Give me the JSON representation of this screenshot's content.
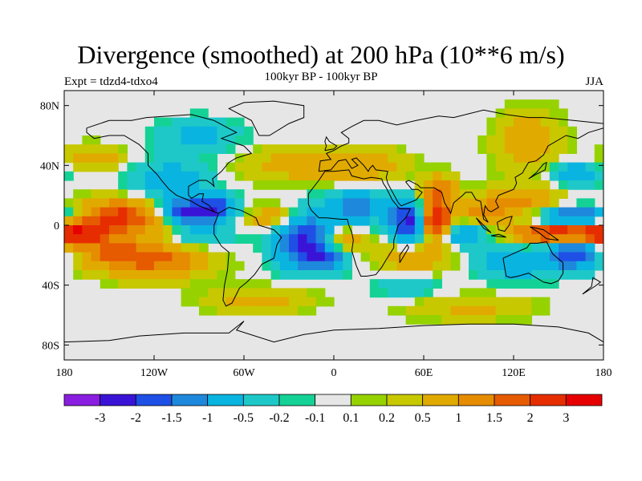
{
  "chart_data": {
    "type": "heatmap",
    "title": "Divergence (smoothed) at 200 hPa (10**6 m/s)",
    "subtitle": "100kyr BP - 100kyr BP",
    "left_label": "Expt = tdzd4-tdxo4",
    "right_label": "JJA",
    "x_ticks": [
      {
        "value": -180,
        "label": "180"
      },
      {
        "value": -120,
        "label": "120W"
      },
      {
        "value": -60,
        "label": "60W"
      },
      {
        "value": 0,
        "label": "0"
      },
      {
        "value": 60,
        "label": "60E"
      },
      {
        "value": 120,
        "label": "120E"
      },
      {
        "value": 180,
        "label": "180"
      }
    ],
    "y_ticks": [
      {
        "value": 80,
        "label": "80N"
      },
      {
        "value": 40,
        "label": "40N"
      },
      {
        "value": 0,
        "label": "0"
      },
      {
        "value": -40,
        "label": "40S"
      },
      {
        "value": -80,
        "label": "80S"
      }
    ],
    "xlim": [
      -180,
      180
    ],
    "ylim": [
      -90,
      90
    ],
    "colorbar": {
      "labels": [
        "-3",
        "-2",
        "-1.5",
        "-1",
        "-0.5",
        "-0.2",
        "-0.1",
        "0.1",
        "0.2",
        "0.5",
        "1",
        "1.5",
        "2",
        "3"
      ],
      "colors": [
        "#8a1ee0",
        "#3a14d6",
        "#1e50e6",
        "#1e88dc",
        "#0ab4e0",
        "#1ec8c8",
        "#14d296",
        "#e6e6e6",
        "#96d200",
        "#c8c800",
        "#e1aa00",
        "#e68c00",
        "#e65a00",
        "#e62d00",
        "#e60000"
      ],
      "levels": [
        -3,
        -2,
        -1.5,
        -1,
        -0.5,
        -0.2,
        -0.1,
        0.1,
        0.2,
        0.5,
        1,
        1.5,
        2,
        3
      ]
    },
    "features": [
      {
        "lon": -130,
        "lat": 5,
        "sx": 25,
        "sy": 8,
        "amp": 1.8
      },
      {
        "lon": -150,
        "lat": 8,
        "sx": 15,
        "sy": 7,
        "amp": 0.8
      },
      {
        "lon": -100,
        "lat": 8,
        "sx": 15,
        "sy": 6,
        "amp": -2.6
      },
      {
        "lon": -80,
        "lat": 12,
        "sx": 10,
        "sy": 6,
        "amp": -1.6
      },
      {
        "lon": -170,
        "lat": -5,
        "sx": 12,
        "sy": 6,
        "amp": 1.9
      },
      {
        "lon": -120,
        "lat": -22,
        "sx": 25,
        "sy": 9,
        "amp": 1.7
      },
      {
        "lon": -150,
        "lat": -18,
        "sx": 15,
        "sy": 7,
        "amp": 0.9
      },
      {
        "lon": -95,
        "lat": -8,
        "sx": 18,
        "sy": 6,
        "amp": -0.9
      },
      {
        "lon": -110,
        "lat": 30,
        "sx": 20,
        "sy": 10,
        "amp": -0.8
      },
      {
        "lon": -160,
        "lat": 45,
        "sx": 15,
        "sy": 6,
        "amp": 0.8
      },
      {
        "lon": -20,
        "lat": -10,
        "sx": 14,
        "sy": 12,
        "amp": -2.2
      },
      {
        "lon": -5,
        "lat": -22,
        "sx": 10,
        "sy": 6,
        "amp": -1.2
      },
      {
        "lon": 5,
        "lat": -10,
        "sx": 10,
        "sy": 6,
        "amp": 1.2
      },
      {
        "lon": -40,
        "lat": 5,
        "sx": 12,
        "sy": 6,
        "amp": 1.0
      },
      {
        "lon": 15,
        "lat": 12,
        "sx": 15,
        "sy": 8,
        "amp": -1.2
      },
      {
        "lon": 50,
        "lat": 2,
        "sx": 8,
        "sy": 10,
        "amp": -2.3
      },
      {
        "lon": 68,
        "lat": 2,
        "sx": 8,
        "sy": 8,
        "amp": 2.8
      },
      {
        "lon": 70,
        "lat": 22,
        "sx": 8,
        "sy": 8,
        "amp": 1.5
      },
      {
        "lon": 55,
        "lat": -22,
        "sx": 18,
        "sy": 8,
        "amp": 0.9
      },
      {
        "lon": 85,
        "lat": -5,
        "sx": 15,
        "sy": 6,
        "amp": -1.2
      },
      {
        "lon": 100,
        "lat": 8,
        "sx": 10,
        "sy": 6,
        "amp": 1.2
      },
      {
        "lon": 125,
        "lat": 15,
        "sx": 18,
        "sy": 8,
        "amp": 1.1
      },
      {
        "lon": 160,
        "lat": 5,
        "sx": 20,
        "sy": 5,
        "amp": -2.0
      },
      {
        "lon": 155,
        "lat": -5,
        "sx": 25,
        "sy": 5,
        "amp": 3.0
      },
      {
        "lon": 160,
        "lat": -18,
        "sx": 12,
        "sy": 8,
        "amp": -1.8
      },
      {
        "lon": 120,
        "lat": -25,
        "sx": 20,
        "sy": 8,
        "amp": -0.9
      },
      {
        "lon": 130,
        "lat": 55,
        "sx": 15,
        "sy": 15,
        "amp": 0.9
      },
      {
        "lon": 160,
        "lat": 35,
        "sx": 15,
        "sy": 6,
        "amp": -0.8
      },
      {
        "lon": -30,
        "lat": 40,
        "sx": 25,
        "sy": 8,
        "amp": 0.7
      },
      {
        "lon": 20,
        "lat": 40,
        "sx": 20,
        "sy": 8,
        "amp": 0.8
      },
      {
        "lon": -90,
        "lat": 60,
        "sx": 20,
        "sy": 8,
        "amp": -0.6
      },
      {
        "lon": -50,
        "lat": -50,
        "sx": 25,
        "sy": 6,
        "amp": 0.7
      },
      {
        "lon": 90,
        "lat": -55,
        "sx": 30,
        "sy": 6,
        "amp": 0.6
      },
      {
        "lon": 50,
        "lat": -40,
        "sx": 15,
        "sy": 6,
        "amp": -0.6
      }
    ]
  },
  "map": {
    "background": "#e6e6e6",
    "coastline_color": "#000000",
    "coastlines": [
      [
        [
          -165,
          65
        ],
        [
          -150,
          70
        ],
        [
          -135,
          70
        ],
        [
          -125,
          72
        ],
        [
          -95,
          74
        ],
        [
          -80,
          70
        ],
        [
          -65,
          62
        ],
        [
          -75,
          58
        ],
        [
          -60,
          53
        ],
        [
          -55,
          48
        ],
        [
          -65,
          45
        ],
        [
          -70,
          42
        ],
        [
          -75,
          36
        ],
        [
          -81,
          31
        ],
        [
          -80,
          26
        ],
        [
          -82,
          28
        ],
        [
          -85,
          30
        ],
        [
          -90,
          30
        ],
        [
          -97,
          26
        ],
        [
          -97,
          20
        ],
        [
          -95,
          18
        ],
        [
          -90,
          21
        ],
        [
          -87,
          21
        ],
        [
          -88,
          16
        ],
        [
          -83,
          13
        ],
        [
          -80,
          9
        ],
        [
          -77,
          8
        ],
        [
          -80,
          9
        ],
        [
          -85,
          11
        ],
        [
          -90,
          13
        ],
        [
          -95,
          16
        ],
        [
          -105,
          20
        ],
        [
          -110,
          24
        ],
        [
          -115,
          30
        ],
        [
          -118,
          34
        ],
        [
          -124,
          40
        ],
        [
          -124,
          48
        ],
        [
          -130,
          54
        ],
        [
          -140,
          60
        ],
        [
          -150,
          60
        ],
        [
          -160,
          58
        ],
        [
          -165,
          62
        ],
        [
          -165,
          65
        ]
      ],
      [
        [
          -77,
          8
        ],
        [
          -70,
          12
        ],
        [
          -62,
          10
        ],
        [
          -52,
          5
        ],
        [
          -50,
          0
        ],
        [
          -40,
          -3
        ],
        [
          -35,
          -8
        ],
        [
          -38,
          -13
        ],
        [
          -40,
          -22
        ],
        [
          -48,
          -26
        ],
        [
          -53,
          -33
        ],
        [
          -58,
          -38
        ],
        [
          -63,
          -42
        ],
        [
          -65,
          -46
        ],
        [
          -68,
          -52
        ],
        [
          -72,
          -54
        ],
        [
          -74,
          -50
        ],
        [
          -73,
          -40
        ],
        [
          -71,
          -30
        ],
        [
          -70,
          -18
        ],
        [
          -75,
          -14
        ],
        [
          -80,
          -6
        ],
        [
          -80,
          0
        ],
        [
          -78,
          5
        ],
        [
          -77,
          8
        ]
      ],
      [
        [
          -17,
          21
        ],
        [
          -17,
          14
        ],
        [
          -15,
          10
        ],
        [
          -10,
          5
        ],
        [
          -5,
          5
        ],
        [
          5,
          4
        ],
        [
          9,
          4
        ],
        [
          10,
          0
        ],
        [
          12,
          -5
        ],
        [
          13,
          -10
        ],
        [
          12,
          -17
        ],
        [
          15,
          -27
        ],
        [
          18,
          -34
        ],
        [
          22,
          -34
        ],
        [
          28,
          -33
        ],
        [
          32,
          -28
        ],
        [
          35,
          -23
        ],
        [
          40,
          -15
        ],
        [
          40,
          -10
        ],
        [
          43,
          0
        ],
        [
          48,
          5
        ],
        [
          51,
          11
        ],
        [
          44,
          11
        ],
        [
          43,
          12
        ],
        [
          39,
          17
        ],
        [
          35,
          25
        ],
        [
          33,
          28
        ],
        [
          32,
          31
        ],
        [
          25,
          32
        ],
        [
          20,
          31
        ],
        [
          12,
          33
        ],
        [
          10,
          37
        ],
        [
          0,
          36
        ],
        [
          -6,
          36
        ],
        [
          -10,
          30
        ],
        [
          -17,
          21
        ]
      ],
      [
        [
          -10,
          36
        ],
        [
          -9,
          43
        ],
        [
          -2,
          44
        ],
        [
          -5,
          48
        ],
        [
          0,
          50
        ],
        [
          5,
          53
        ],
        [
          10,
          55
        ],
        [
          10,
          58
        ],
        [
          5,
          62
        ],
        [
          12,
          66
        ],
        [
          20,
          70
        ],
        [
          30,
          70
        ],
        [
          42,
          67
        ],
        [
          55,
          70
        ],
        [
          70,
          73
        ],
        [
          80,
          72
        ],
        [
          100,
          77
        ],
        [
          115,
          74
        ],
        [
          130,
          72
        ],
        [
          140,
          72
        ],
        [
          160,
          70
        ],
        [
          180,
          68
        ],
        [
          180,
          65
        ],
        [
          170,
          62
        ],
        [
          163,
          58
        ],
        [
          155,
          60
        ],
        [
          143,
          53
        ],
        [
          140,
          47
        ],
        [
          135,
          43
        ],
        [
          130,
          42
        ],
        [
          127,
          37
        ],
        [
          126,
          35
        ],
        [
          121,
          32
        ],
        [
          122,
          28
        ],
        [
          120,
          24
        ],
        [
          115,
          22
        ],
        [
          110,
          20
        ],
        [
          108,
          16
        ],
        [
          110,
          12
        ],
        [
          105,
          9
        ],
        [
          103,
          10
        ],
        [
          101,
          13
        ],
        [
          100,
          7
        ],
        [
          103,
          2
        ],
        [
          100,
          4
        ],
        [
          98,
          16
        ],
        [
          95,
          17
        ],
        [
          92,
          22
        ],
        [
          88,
          22
        ],
        [
          86,
          20
        ],
        [
          80,
          15
        ],
        [
          78,
          8
        ],
        [
          74,
          15
        ],
        [
          72,
          22
        ],
        [
          67,
          25
        ],
        [
          58,
          25
        ],
        [
          56,
          27
        ],
        [
          50,
          30
        ],
        [
          48,
          29
        ],
        [
          52,
          24
        ],
        [
          56,
          24
        ],
        [
          59,
          22
        ],
        [
          55,
          17
        ],
        [
          45,
          13
        ],
        [
          43,
          15
        ],
        [
          36,
          28
        ],
        [
          35,
          32
        ],
        [
          36,
          36
        ],
        [
          28,
          37
        ],
        [
          26,
          40
        ],
        [
          24,
          38
        ],
        [
          23,
          36
        ],
        [
          20,
          40
        ],
        [
          15,
          45
        ],
        [
          12,
          44
        ],
        [
          16,
          40
        ],
        [
          12,
          38
        ],
        [
          8,
          44
        ],
        [
          3,
          43
        ],
        [
          -2,
          37
        ],
        [
          -10,
          36
        ]
      ],
      [
        [
          113,
          -22
        ],
        [
          115,
          -34
        ],
        [
          118,
          -35
        ],
        [
          123,
          -34
        ],
        [
          130,
          -32
        ],
        [
          135,
          -35
        ],
        [
          140,
          -38
        ],
        [
          145,
          -39
        ],
        [
          150,
          -37
        ],
        [
          153,
          -32
        ],
        [
          153,
          -25
        ],
        [
          146,
          -19
        ],
        [
          142,
          -11
        ],
        [
          136,
          -12
        ],
        [
          131,
          -12
        ],
        [
          129,
          -15
        ],
        [
          122,
          -18
        ],
        [
          113,
          -22
        ]
      ],
      [
        [
          -50,
          60
        ],
        [
          -43,
          60
        ],
        [
          -30,
          68
        ],
        [
          -20,
          72
        ],
        [
          -20,
          80
        ],
        [
          -40,
          83
        ],
        [
          -60,
          82
        ],
        [
          -70,
          78
        ],
        [
          -55,
          70
        ],
        [
          -50,
          60
        ]
      ],
      [
        [
          -6,
          50
        ],
        [
          0,
          51
        ],
        [
          2,
          53
        ],
        [
          -3,
          56
        ],
        [
          -5,
          59
        ],
        [
          -6,
          56
        ],
        [
          -5,
          53
        ],
        [
          -6,
          50
        ]
      ],
      [
        [
          95,
          5
        ],
        [
          100,
          0
        ],
        [
          105,
          -5
        ],
        [
          100,
          -2
        ],
        [
          95,
          5
        ]
      ],
      [
        [
          105,
          -7
        ],
        [
          115,
          -8
        ],
        [
          110,
          -6
        ],
        [
          105,
          -7
        ]
      ],
      [
        [
          109,
          2
        ],
        [
          115,
          5
        ],
        [
          119,
          6
        ],
        [
          117,
          0
        ],
        [
          114,
          -4
        ],
        [
          110,
          -3
        ],
        [
          109,
          2
        ]
      ],
      [
        [
          131,
          -1
        ],
        [
          140,
          -3
        ],
        [
          150,
          -10
        ],
        [
          142,
          -9
        ],
        [
          137,
          -5
        ],
        [
          131,
          -1
        ]
      ],
      [
        [
          44,
          -25
        ],
        [
          50,
          -15
        ],
        [
          49,
          -13
        ],
        [
          44,
          -20
        ],
        [
          44,
          -25
        ]
      ],
      [
        [
          130,
          31
        ],
        [
          135,
          34
        ],
        [
          141,
          37
        ],
        [
          142,
          42
        ],
        [
          140,
          41
        ],
        [
          135,
          35
        ],
        [
          130,
          31
        ]
      ],
      [
        [
          166,
          -46
        ],
        [
          174,
          -41
        ],
        [
          178,
          -38
        ],
        [
          173,
          -35
        ],
        [
          172,
          -41
        ],
        [
          166,
          -46
        ]
      ],
      [
        [
          -180,
          -78
        ],
        [
          -150,
          -77
        ],
        [
          -130,
          -74
        ],
        [
          -100,
          -72
        ],
        [
          -70,
          -72
        ],
        [
          -60,
          -64
        ],
        [
          -65,
          -70
        ],
        [
          -40,
          -78
        ],
        [
          -20,
          -73
        ],
        [
          0,
          -70
        ],
        [
          30,
          -69
        ],
        [
          60,
          -67
        ],
        [
          90,
          -66
        ],
        [
          120,
          -66
        ],
        [
          150,
          -68
        ],
        [
          170,
          -72
        ],
        [
          180,
          -78
        ]
      ]
    ]
  }
}
